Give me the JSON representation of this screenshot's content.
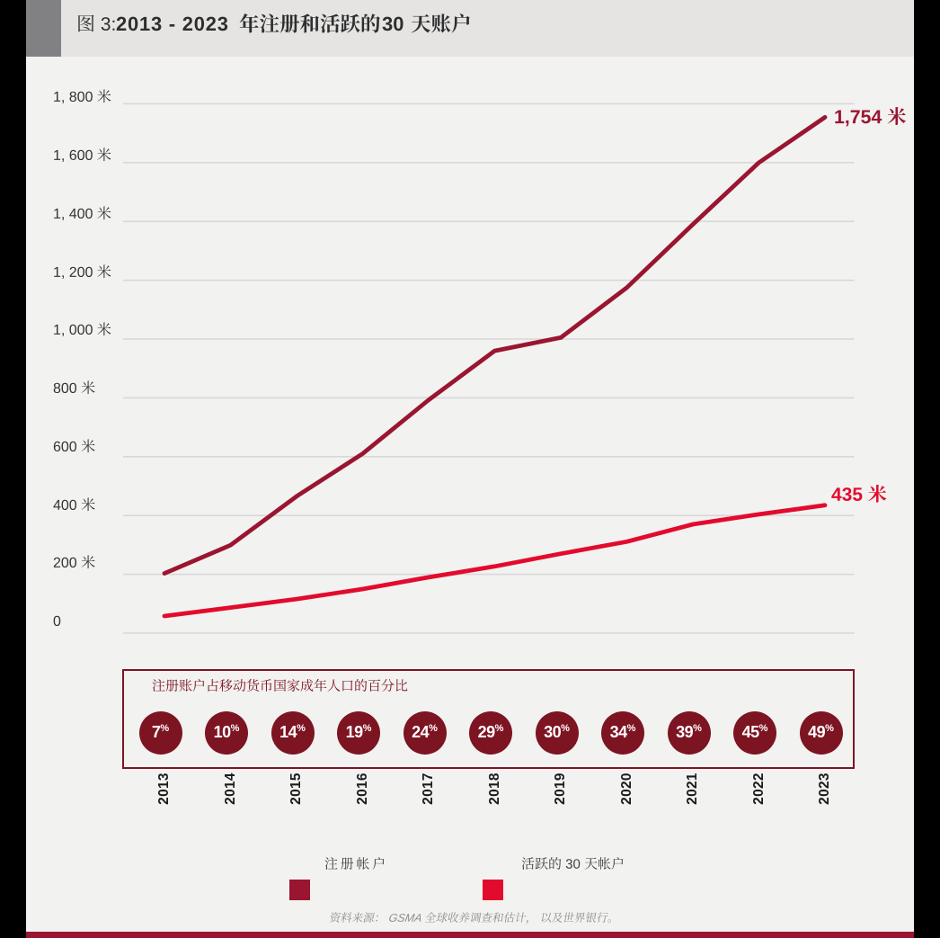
{
  "figure": {
    "label": "图 3:",
    "title": "2013 - 2023 年注册和活跃的 30 天账户",
    "title_full": "图 3:2013 - 2023 年注册和活跃的 30 天账户"
  },
  "chart_data": {
    "type": "line",
    "title": "图 3:2013 - 2023 年注册和活跃的 30 天账户",
    "x": [
      2013,
      2014,
      2015,
      2016,
      2017,
      2018,
      2019,
      2020,
      2021,
      2022,
      2023
    ],
    "series": [
      {
        "name": "注册帐户",
        "color": "#9A1530",
        "values": [
          203,
          299,
          465,
          610,
          793,
          960,
          1005,
          1175,
          1390,
          1600,
          1754
        ]
      },
      {
        "name": "活跃的 30 天帐户",
        "color": "#E30B2D",
        "values": [
          58,
          87,
          116,
          150,
          190,
          227,
          270,
          311,
          370,
          404,
          435
        ]
      }
    ],
    "unit": "米",
    "ylim": [
      0,
      1800
    ],
    "yticks": {
      "values": [
        1800,
        1600,
        1400,
        1200,
        1000,
        800,
        600,
        400,
        200,
        0
      ],
      "labels": [
        "1, 800 米",
        "1, 600 米",
        "1, 400 米",
        "1, 200 米",
        "1, 000 米",
        "800 米",
        "600 米",
        "400 米",
        "200 米",
        "0"
      ]
    },
    "annotations": [
      {
        "series": "注册帐户",
        "text": "1, 754 米",
        "value": 1754
      },
      {
        "series": "活跃的 30 天帐户",
        "text": "435 米",
        "value": 435
      }
    ],
    "grid": "horizontal",
    "legend_position": "bottom"
  },
  "percent_panel": {
    "title": "注册账户占移动货币国家成年人口的百分比",
    "suffix": "%",
    "values": [
      "7",
      "10",
      "14",
      "19",
      "24",
      "29",
      "30",
      "34",
      "39",
      "45",
      "49"
    ]
  },
  "legend": [
    {
      "label": "注册帐户",
      "color": "#9A1530"
    },
    {
      "label": "活跃的 30 天帐户",
      "color": "#E30B2D"
    }
  ],
  "source": "资料来源： GSMA 全球收养调查和估计， 以及世界银行。",
  "colors": {
    "registered": "#9A1530",
    "active": "#E30B2D",
    "circle": "#7D1422",
    "accent_bar": "#9A1530",
    "background": "#F2F2F0",
    "header_band": "#E5E4E3"
  }
}
